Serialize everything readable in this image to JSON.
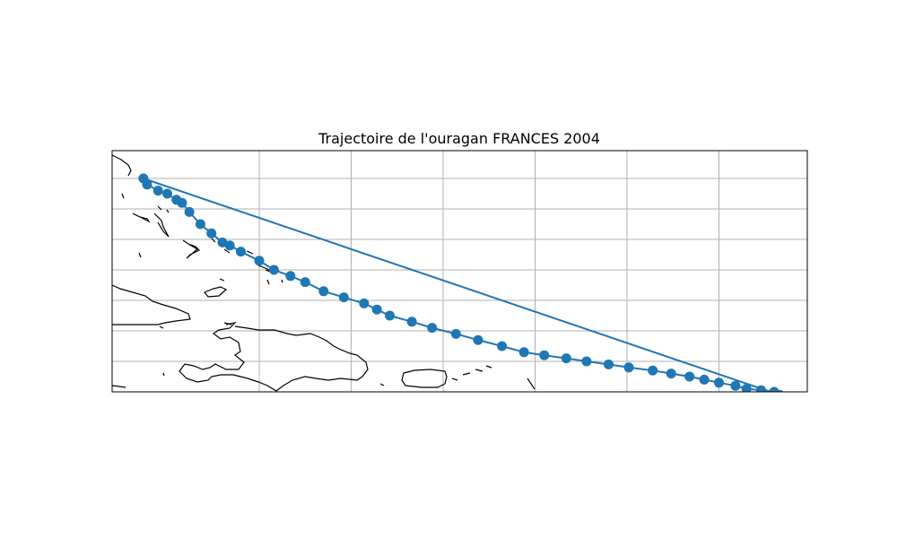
{
  "title": "Trajectoire de l'ouragan FRANCES 2004",
  "chart_data": {
    "type": "map-track",
    "title": "Trajectoire de l'ouragan FRANCES 2004",
    "xlim": [
      -78.0,
      -40.0
    ],
    "ylim": [
      17.0,
      25.0
    ],
    "gridlines_lon": [
      -70,
      -65,
      -60,
      -55,
      -50,
      -45,
      -40
    ],
    "gridlines_lat": [
      17,
      18,
      19,
      20,
      21,
      22,
      23,
      24,
      25
    ],
    "grid": true,
    "color": "#1f77b4",
    "track": {
      "name": "",
      "lon": [
        -76.3,
        -76.1,
        -75.5,
        -75.0,
        -74.5,
        -74.2,
        -73.8,
        -73.2,
        -72.6,
        -72.0,
        -71.6,
        -71.0,
        -70.0,
        -69.2,
        -68.3,
        -67.5,
        -66.5,
        -65.4,
        -64.3,
        -63.6,
        -62.9,
        -61.7,
        -60.6,
        -59.3,
        -58.1,
        -56.8,
        -55.6,
        -54.5,
        -53.3,
        -52.2,
        -51.0,
        -49.9,
        -48.6,
        -47.6,
        -46.6,
        -45.8,
        -45.0,
        -44.1,
        -43.5,
        -42.7,
        -42.0,
        -41.7
      ],
      "lat": [
        24.0,
        23.8,
        23.6,
        23.5,
        23.3,
        23.2,
        22.9,
        22.5,
        22.2,
        21.9,
        21.8,
        21.6,
        21.3,
        21.0,
        20.8,
        20.6,
        20.3,
        20.1,
        19.9,
        19.7,
        19.5,
        19.3,
        19.1,
        18.9,
        18.7,
        18.5,
        18.3,
        18.2,
        18.1,
        18.0,
        17.9,
        17.8,
        17.7,
        17.6,
        17.5,
        17.4,
        17.3,
        17.2,
        17.1,
        17.05,
        17.0,
        16.9
      ]
    },
    "return_line": {
      "from": [
        -41.7,
        16.9
      ],
      "to": [
        -76.3,
        24.0
      ]
    }
  }
}
